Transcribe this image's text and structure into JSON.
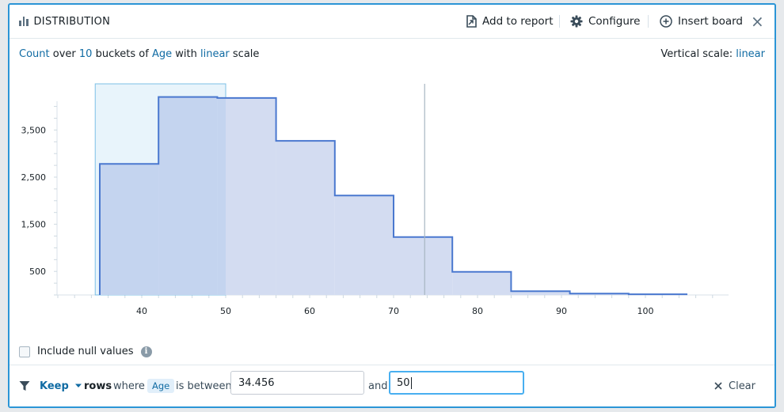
{
  "header": {
    "title": "DISTRIBUTION",
    "add_to_report": "Add to report",
    "configure": "Configure",
    "insert_board": "Insert board",
    "close": "×"
  },
  "summary": {
    "metric": "Count",
    "t_over": "over",
    "buckets": "10",
    "t_buckets_of": "buckets of",
    "field": "Age",
    "t_with": "with",
    "scale": "linear",
    "t_scale": "scale",
    "vscale_label": "Vertical scale:",
    "vscale_value": "linear"
  },
  "options": {
    "null_label": "Include null values",
    "null_checked": false,
    "info_icon": "i"
  },
  "filter": {
    "mode": "Keep",
    "t_rows": "rows",
    "t_where": "where",
    "field": "Age",
    "t_between": "is between",
    "min_value": "34.456",
    "t_and": "and",
    "max_value": "50",
    "clear_label": "Clear"
  },
  "chart_data": {
    "type": "histogram",
    "x_ticks": [
      40,
      50,
      60,
      70,
      80,
      90,
      100
    ],
    "y_ticks": [
      500,
      1500,
      2500,
      3500
    ],
    "y_tick_labels": [
      "500",
      "1,500",
      "2,500",
      "3,500"
    ],
    "xlim": [
      30,
      110
    ],
    "ylim": [
      0,
      4300
    ],
    "bins": [
      {
        "x0": 35,
        "x1": 42,
        "count": 2780
      },
      {
        "x0": 42,
        "x1": 49,
        "count": 4200
      },
      {
        "x0": 49,
        "x1": 56,
        "count": 4180
      },
      {
        "x0": 56,
        "x1": 63,
        "count": 3270
      },
      {
        "x0": 63,
        "x1": 70,
        "count": 2110
      },
      {
        "x0": 70,
        "x1": 77,
        "count": 1230
      },
      {
        "x0": 77,
        "x1": 84,
        "count": 490
      },
      {
        "x0": 84,
        "x1": 91,
        "count": 80
      },
      {
        "x0": 91,
        "x1": 98,
        "count": 30
      },
      {
        "x0": 98,
        "x1": 105,
        "count": 15
      }
    ],
    "selection": [
      34.456,
      50
    ],
    "marker_x": 73.7,
    "colors": {
      "line": "#4a78cf",
      "fill": "#d3dcf1",
      "selected_fill": "#c4d4ef",
      "selection_bg": "#e8f4fb",
      "selection_border": "#7cc0e6"
    }
  }
}
